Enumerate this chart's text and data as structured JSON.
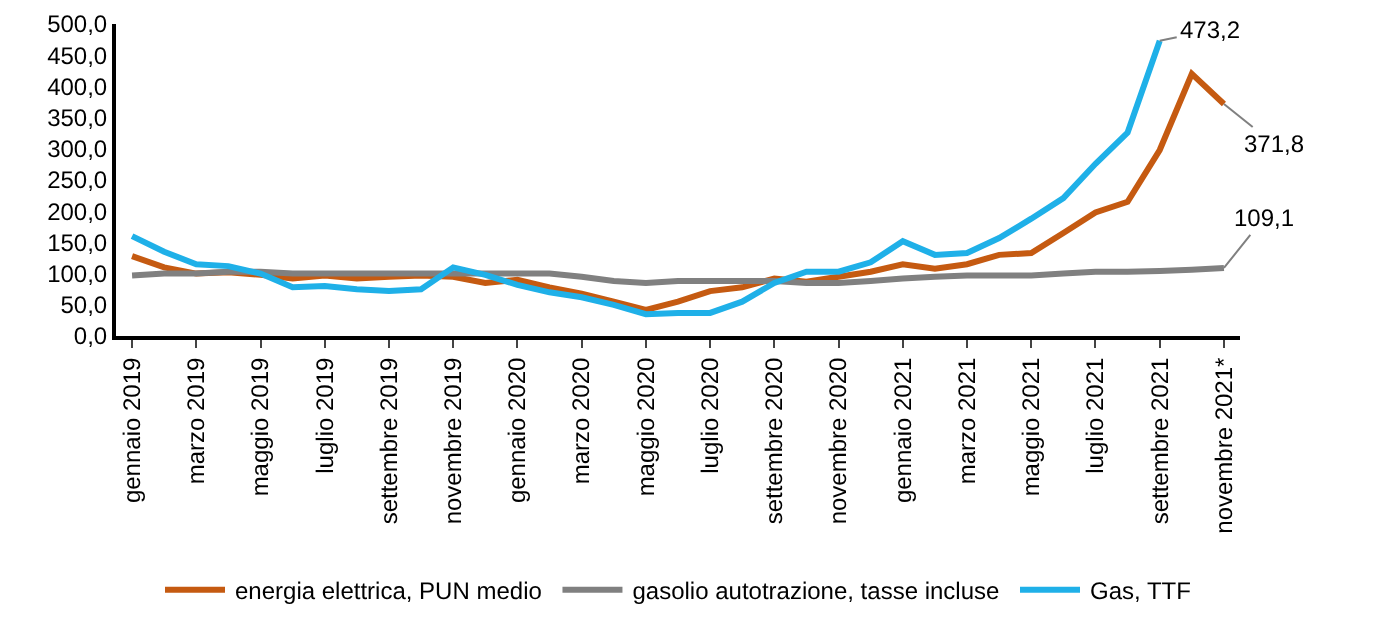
{
  "chart_data": {
    "type": "line",
    "categories": [
      "gennaio 2019",
      null,
      "marzo 2019",
      null,
      "maggio 2019",
      null,
      "luglio 2019",
      null,
      "settembre 2019",
      null,
      "novembre 2019",
      null,
      "gennaio 2020",
      null,
      "marzo 2020",
      null,
      "maggio 2020",
      null,
      "luglio 2020",
      null,
      "settembre 2020",
      null,
      "novembre 2020",
      null,
      "gennaio 2021",
      null,
      "marzo 2021",
      null,
      "maggio 2021",
      null,
      "luglio 2021",
      null,
      "settembre 2021",
      null,
      "novembre 2021*"
    ],
    "series": [
      {
        "name": "energia elettrica, PUN medio",
        "color": "#c55a11",
        "values": [
          128,
          110,
          100,
          102,
          98,
          92,
          97,
          92,
          95,
          97,
          95,
          85,
          90,
          78,
          68,
          55,
          42,
          55,
          72,
          78,
          92,
          87,
          95,
          103,
          115,
          108,
          115,
          130,
          133,
          165,
          198,
          215,
          298,
          420,
          371.8
        ]
      },
      {
        "name": "gasolio autotrazione, tasse incluse",
        "color": "#808080",
        "values": [
          97,
          100,
          100,
          103,
          103,
          100,
          100,
          100,
          100,
          100,
          100,
          100,
          100,
          100,
          95,
          88,
          85,
          88,
          88,
          88,
          88,
          85,
          85,
          88,
          92,
          95,
          97,
          97,
          97,
          100,
          103,
          103,
          104,
          106,
          109.1
        ]
      },
      {
        "name": "Gas, TTF",
        "color": "#1fb0e8",
        "values": [
          160,
          135,
          115,
          112,
          100,
          78,
          80,
          75,
          72,
          75,
          110,
          98,
          82,
          70,
          62,
          50,
          35,
          37,
          37,
          55,
          85,
          103,
          103,
          118,
          152,
          130,
          133,
          157,
          188,
          221,
          276,
          326,
          473.2,
          null,
          null
        ]
      }
    ],
    "ylim": [
      0,
      500
    ],
    "yticks": [
      {
        "value": 0,
        "label": "0,0"
      },
      {
        "value": 50,
        "label": "50,0"
      },
      {
        "value": 100,
        "label": "100,0"
      },
      {
        "value": 150,
        "label": "150,0"
      },
      {
        "value": 200,
        "label": "200,0"
      },
      {
        "value": 250,
        "label": "250,0"
      },
      {
        "value": 300,
        "label": "300,0"
      },
      {
        "value": 350,
        "label": "350,0"
      },
      {
        "value": 400,
        "label": "400,0"
      },
      {
        "value": 450,
        "label": "450,0"
      },
      {
        "value": 500,
        "label": "500,0"
      }
    ],
    "annotations": [
      {
        "text": "473,2",
        "x": "settembre 2021",
        "y": 473.2
      },
      {
        "text": "371,8",
        "x": "novembre 2021*",
        "y": 371.8
      },
      {
        "text": "109,1",
        "x": "novembre 2021*",
        "y": 109.1
      }
    ],
    "grid": false,
    "legend": "bottom",
    "marker": "none",
    "line_style": "solid"
  }
}
